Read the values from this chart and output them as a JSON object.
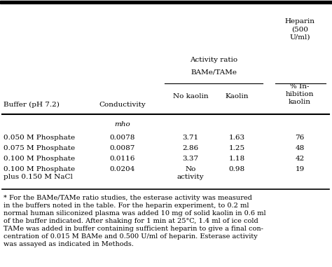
{
  "rows": [
    [
      "0.050 M Phosphate",
      "0.0078",
      "3.71",
      "1.63",
      "76"
    ],
    [
      "0.075 M Phosphate",
      "0.0087",
      "2.86",
      "1.25",
      "48"
    ],
    [
      "0.100 M Phosphate",
      "0.0116",
      "3.37",
      "1.18",
      "42"
    ],
    [
      "0.100 M Phosphate\nplus 0.150 M NaCl",
      "0.0204",
      "No\nactivity",
      "0.98",
      "19"
    ]
  ],
  "footnote_lines": [
    "* For the BAMe/TAMe ratio studies, the esterase activity was measured",
    "in the buffers noted in the table. For the heparin experiment, to 0.2 ml",
    "normal human siliconized plasma was added 10 mg of solid kaolin in 0.6 ml",
    "of the buffer indicated. After shaking for 1 min at 25°C, 1.4 ml of ice cold",
    "TAMe was added in buffer containing sufficient heparin to give a final con-",
    "centration of 0.015 M BAMe and 0.500 U/ml of heparin. Esterase activity",
    "was assayed as indicated in Methods."
  ],
  "bg_color": "#ffffff",
  "text_color": "#000000"
}
